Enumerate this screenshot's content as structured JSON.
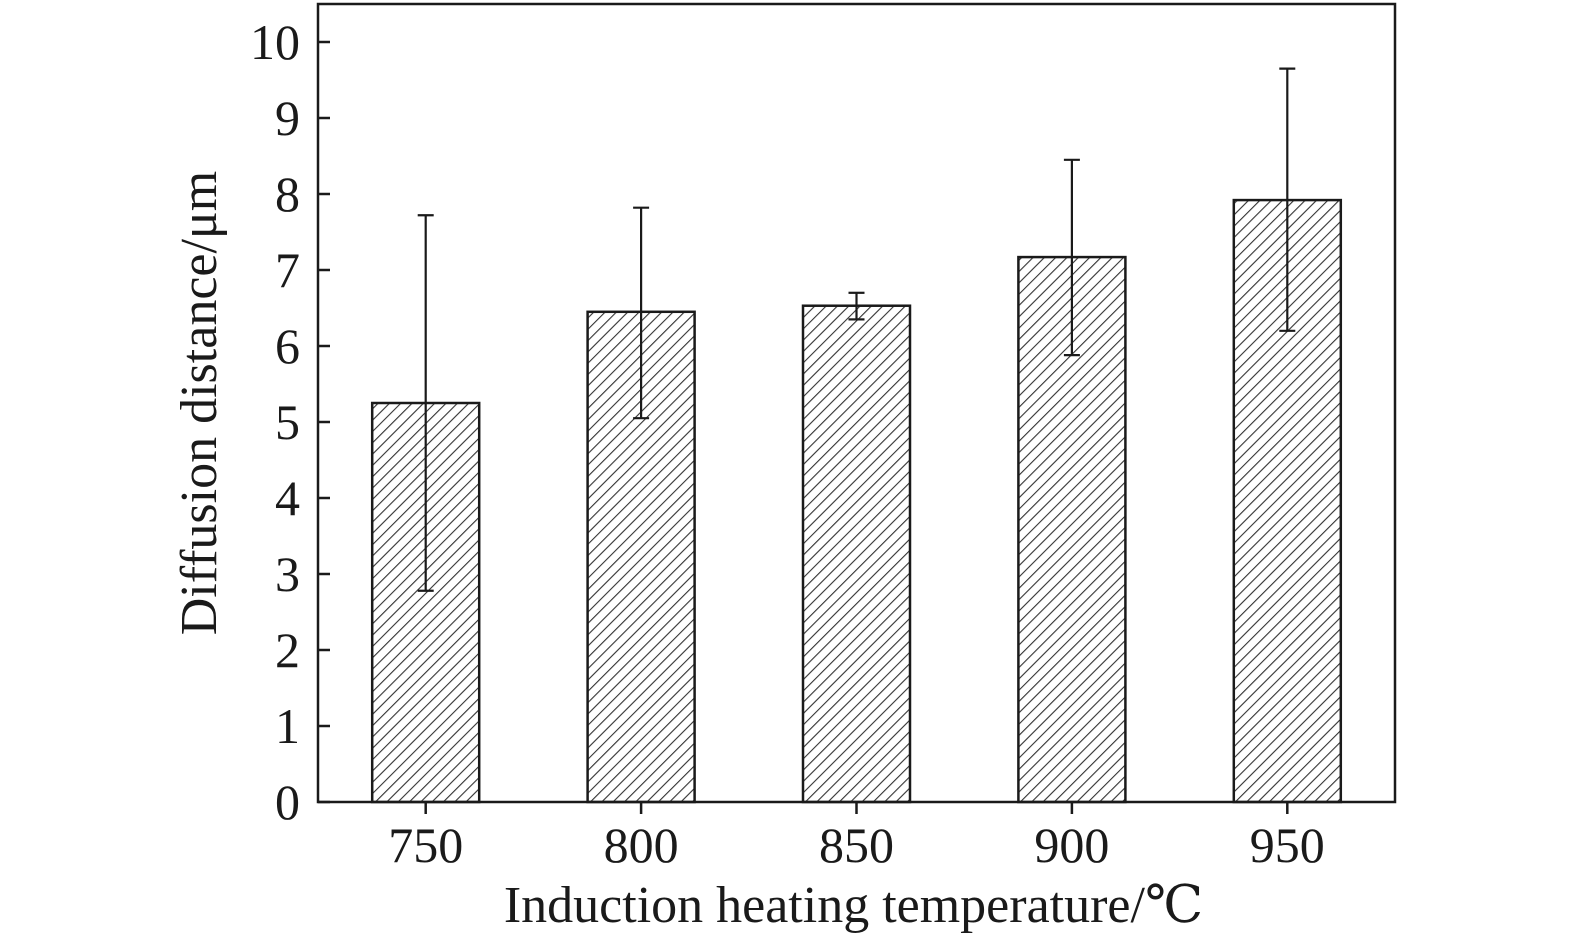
{
  "chart_data": {
    "type": "bar",
    "title": "",
    "xlabel": "Induction heating temperature/℃",
    "ylabel": "Diffusion distance/μm",
    "categories": [
      "750",
      "800",
      "850",
      "900",
      "950"
    ],
    "values": [
      5.25,
      6.45,
      6.53,
      7.17,
      7.92
    ],
    "error_upper": [
      7.72,
      7.82,
      6.7,
      8.45,
      9.65
    ],
    "error_lower": [
      2.78,
      5.05,
      6.35,
      5.88,
      6.2
    ],
    "ylim": [
      0,
      10.5
    ],
    "yticks": [
      "0",
      "1",
      "2",
      "3",
      "4",
      "5",
      "6",
      "7",
      "8",
      "9",
      "10"
    ],
    "grid": false,
    "legend": "none",
    "bar_fill": "hatched diagonal",
    "colors": {
      "bar_hatch": "#333333",
      "axis": "#1a1a1a"
    }
  }
}
